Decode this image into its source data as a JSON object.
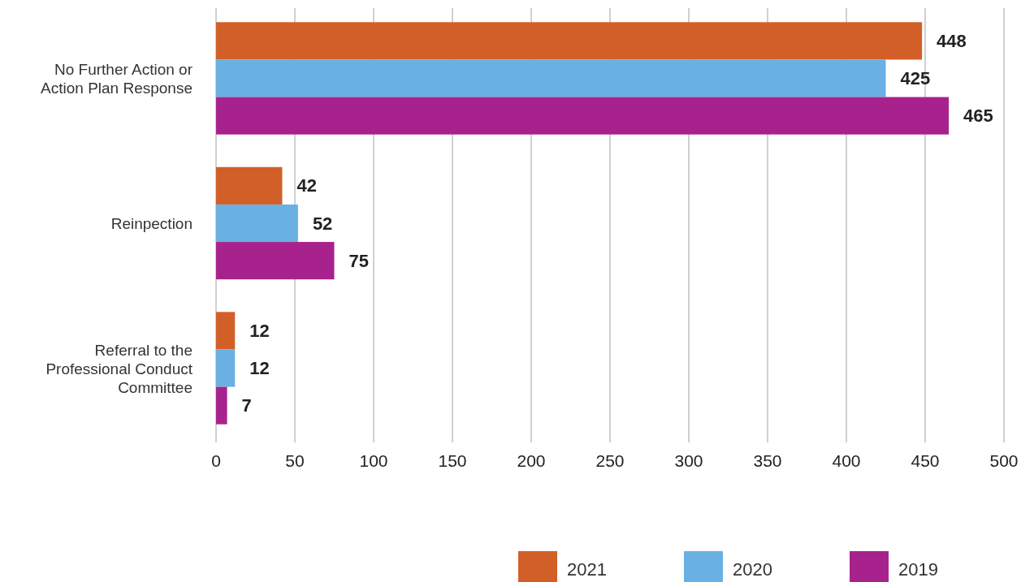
{
  "chart_data": {
    "type": "bar",
    "orientation": "horizontal",
    "categories": [
      "No Further Action or Action Plan Response",
      "Reinpection",
      "Referral to the Professional Conduct Committee"
    ],
    "series": [
      {
        "name": "2021",
        "color": "#d35f28",
        "values": [
          448,
          42,
          12
        ]
      },
      {
        "name": "2020",
        "color": "#68b1e2",
        "values": [
          425,
          52,
          12
        ]
      },
      {
        "name": "2019",
        "color": "#a8228e",
        "values": [
          465,
          75,
          7
        ]
      }
    ],
    "xlim": [
      0,
      500
    ],
    "xticks": [
      0,
      50,
      100,
      150,
      200,
      250,
      300,
      350,
      400,
      450,
      500
    ],
    "grid": "x",
    "data_labels": true,
    "legend": "bottom right"
  }
}
